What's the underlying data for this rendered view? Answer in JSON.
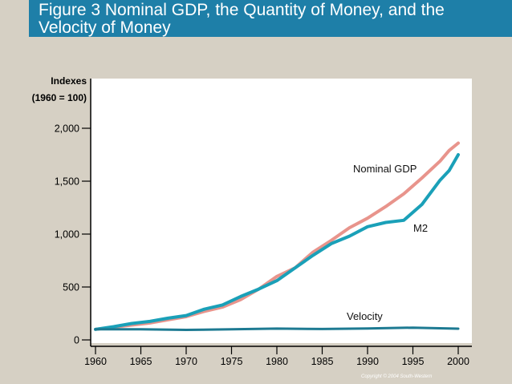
{
  "title": "Figure 3 Nominal GDP, the Quantity of Money, and the Velocity of Money",
  "copyright": "Copyright © 2004 South-Western",
  "colors": {
    "background": "#d6d0c4",
    "title_bar": "#1e7fa8",
    "nominal_gdp": "#e8948c",
    "m2": "#1aa0b8",
    "velocity": "#1d7a92"
  },
  "chart_data": {
    "type": "line",
    "title": "",
    "ylabel": "Indexes (1960 = 100)",
    "ylabel_lines": [
      "Indexes",
      "(1960 = 100)"
    ],
    "xlabel": "",
    "xlim": [
      1960,
      2000
    ],
    "ylim": [
      0,
      2200
    ],
    "x_ticks": [
      1960,
      1965,
      1970,
      1975,
      1980,
      1985,
      1990,
      1995,
      2000
    ],
    "x_tick_labels": [
      "1960",
      "1965",
      "1970",
      "1975",
      "1980",
      "1985",
      "1990",
      "1995",
      "2000"
    ],
    "y_ticks": [
      0,
      500,
      1000,
      1500,
      2000
    ],
    "y_tick_labels": [
      "0",
      "500",
      "1,000",
      "1,500",
      "2,000"
    ],
    "grid": false,
    "series": [
      {
        "name": "Nominal GDP",
        "color": "#e8948c",
        "x": [
          1960,
          1962,
          1964,
          1966,
          1968,
          1970,
          1972,
          1974,
          1976,
          1978,
          1980,
          1982,
          1984,
          1986,
          1988,
          1990,
          1992,
          1994,
          1996,
          1998,
          1999,
          2000
        ],
        "y": [
          100,
          120,
          140,
          160,
          190,
          220,
          270,
          310,
          380,
          480,
          600,
          680,
          830,
          940,
          1060,
          1150,
          1260,
          1380,
          1530,
          1690,
          1790,
          1860
        ]
      },
      {
        "name": "M2",
        "color": "#1aa0b8",
        "x": [
          1960,
          1962,
          1964,
          1966,
          1968,
          1970,
          1972,
          1974,
          1976,
          1978,
          1980,
          1982,
          1984,
          1986,
          1988,
          1990,
          1992,
          1994,
          1996,
          1998,
          1999,
          2000
        ],
        "y": [
          100,
          125,
          155,
          175,
          205,
          230,
          290,
          330,
          410,
          480,
          560,
          680,
          800,
          910,
          980,
          1070,
          1110,
          1130,
          1280,
          1510,
          1600,
          1750
        ]
      },
      {
        "name": "Velocity",
        "color": "#1d7a92",
        "x": [
          1960,
          1965,
          1970,
          1975,
          1980,
          1985,
          1990,
          1995,
          2000
        ],
        "y": [
          100,
          100,
          95,
          100,
          107,
          103,
          108,
          116,
          106
        ]
      }
    ],
    "series_label_positions": [
      "near line end, upper right",
      "right side",
      "above velocity line"
    ]
  }
}
